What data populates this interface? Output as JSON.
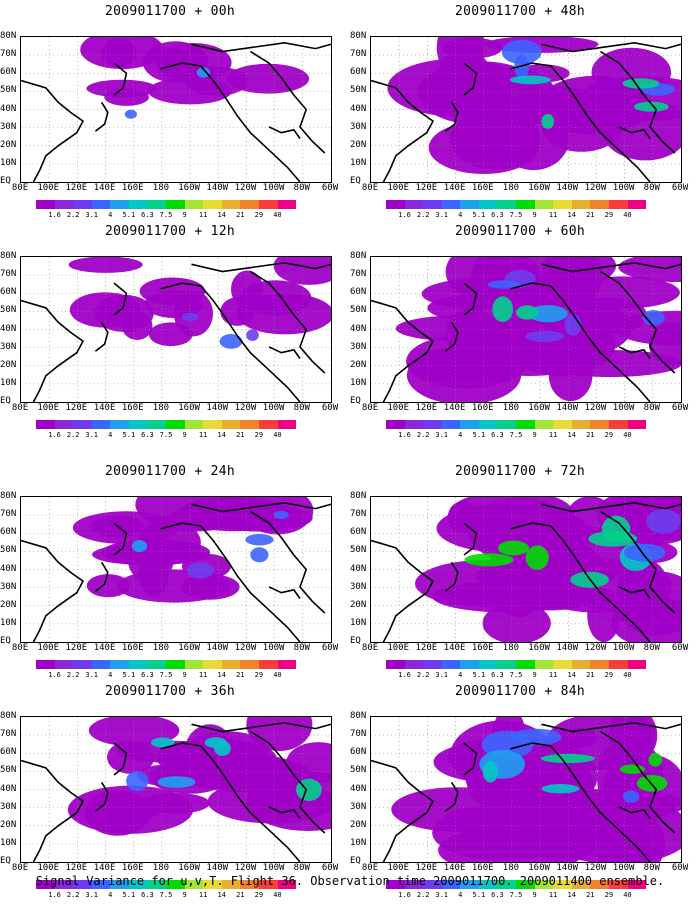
{
  "caption": "Signal Variance for u,v,T. Flight 36. Observation time 2009011700. 2009011400 ensemble.",
  "lat_labels": [
    "80N",
    "70N",
    "60N",
    "50N",
    "40N",
    "30N",
    "20N",
    "10N",
    "EQ"
  ],
  "lon_labels": [
    "80E",
    "100E",
    "120E",
    "140E",
    "160E",
    "180",
    "160W",
    "140W",
    "120W",
    "100W",
    "80W",
    "60W"
  ],
  "colorbar": {
    "values": [
      "1.6",
      "2.2",
      "3.1",
      "4",
      "5.1",
      "6.3",
      "7.5",
      "9",
      "11",
      "14",
      "21",
      "29",
      "40"
    ],
    "colors": [
      "#a000c8",
      "#8c28dc",
      "#6e3cf0",
      "#3c64ff",
      "#1ea0f0",
      "#00c8c8",
      "#00d28c",
      "#00dc00",
      "#a0e632",
      "#e6dc32",
      "#e6af2d",
      "#f08228",
      "#fa3c3c",
      "#f00082"
    ]
  },
  "panels": [
    {
      "id": "p00",
      "title": "2009011700 + 00h",
      "intensity": 0.15
    },
    {
      "id": "p12",
      "title": "2009011700 + 12h",
      "intensity": 0.3
    },
    {
      "id": "p24",
      "title": "2009011700 + 24h",
      "intensity": 0.45
    },
    {
      "id": "p36",
      "title": "2009011700 + 36h",
      "intensity": 0.6
    },
    {
      "id": "p48",
      "title": "2009011700 + 48h",
      "intensity": 0.7
    },
    {
      "id": "p60",
      "title": "2009011700 + 60h",
      "intensity": 0.8
    },
    {
      "id": "p72",
      "title": "2009011700 + 72h",
      "intensity": 0.9
    },
    {
      "id": "p84",
      "title": "2009011700 + 84h",
      "intensity": 1.0
    }
  ]
}
